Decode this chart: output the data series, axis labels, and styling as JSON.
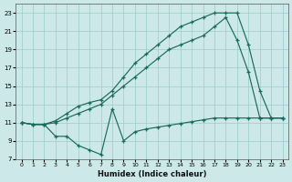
{
  "xlabel": "Humidex (Indice chaleur)",
  "bg_color": "#cce8e8",
  "grid_color": "#99cccc",
  "line_color": "#1a6b5e",
  "xlim": [
    -0.5,
    23.5
  ],
  "ylim": [
    7,
    24
  ],
  "yticks": [
    7,
    9,
    11,
    13,
    15,
    17,
    19,
    21,
    23
  ],
  "xticks": [
    0,
    1,
    2,
    3,
    4,
    5,
    6,
    7,
    8,
    9,
    10,
    11,
    12,
    13,
    14,
    15,
    16,
    17,
    18,
    19,
    20,
    21,
    22,
    23
  ],
  "s1_x": [
    0,
    1,
    2,
    3,
    4,
    5,
    6,
    7,
    8,
    9,
    10,
    11,
    12,
    13,
    14,
    15,
    16,
    17,
    18,
    19,
    20,
    21,
    22,
    23
  ],
  "s1_y": [
    11.0,
    10.8,
    10.8,
    11.2,
    12.0,
    12.8,
    13.2,
    13.5,
    14.5,
    16.0,
    17.5,
    18.5,
    19.5,
    20.5,
    21.5,
    22.0,
    22.5,
    23.0,
    23.0,
    23.0,
    19.5,
    14.5,
    11.5,
    11.5
  ],
  "s2_x": [
    0,
    1,
    2,
    3,
    4,
    5,
    6,
    7,
    8,
    9,
    10,
    11,
    12,
    13,
    14,
    15,
    16,
    17,
    18,
    19,
    20,
    21,
    22,
    23
  ],
  "s2_y": [
    11.0,
    10.8,
    10.8,
    11.0,
    11.5,
    12.0,
    12.5,
    13.0,
    14.0,
    15.0,
    16.0,
    17.0,
    18.0,
    19.0,
    19.5,
    20.0,
    20.5,
    21.5,
    22.5,
    20.0,
    16.5,
    11.5,
    11.5,
    11.5
  ],
  "s3_x": [
    0,
    1,
    2,
    3,
    4,
    5,
    6,
    7,
    8,
    9,
    10,
    11,
    12,
    13,
    14,
    15,
    16,
    17,
    18,
    19,
    20,
    21,
    22,
    23
  ],
  "s3_y": [
    11.0,
    10.8,
    10.8,
    9.5,
    9.5,
    8.5,
    8.0,
    7.5,
    12.5,
    9.0,
    10.0,
    10.3,
    10.5,
    10.7,
    10.9,
    11.1,
    11.3,
    11.5,
    11.5,
    11.5,
    11.5,
    11.5,
    11.5,
    11.5
  ]
}
